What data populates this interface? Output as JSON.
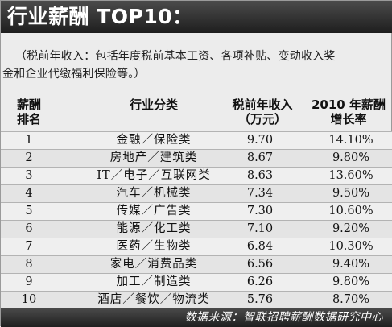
{
  "title": "行业薪酬 TOP10：",
  "note": {
    "line1": "（税前年收入：包括年度税前基本工资、各项补贴、变动收入奖",
    "line2": "金和企业代缴福利保险等。）"
  },
  "headers": {
    "rank": [
      "薪酬",
      "排名"
    ],
    "category": "行业分类",
    "pretax": [
      "税前年收入",
      "（万元）"
    ],
    "growth": [
      "2010 年薪酬",
      "增长率"
    ]
  },
  "rows": [
    {
      "rank": "1",
      "category": "金融／保险类",
      "pretax": "9.70",
      "growth": "14.10%"
    },
    {
      "rank": "2",
      "category": "房地产／建筑类",
      "pretax": "8.67",
      "growth": "9.80%"
    },
    {
      "rank": "3",
      "category": "IT／电子／互联网类",
      "pretax": "8.63",
      "growth": "13.60%"
    },
    {
      "rank": "4",
      "category": "汽车／机械类",
      "pretax": "7.34",
      "growth": "9.50%"
    },
    {
      "rank": "5",
      "category": "传媒／广告类",
      "pretax": "7.30",
      "growth": "10.60%"
    },
    {
      "rank": "6",
      "category": "能源／化工类",
      "pretax": "7.10",
      "growth": "9.20%"
    },
    {
      "rank": "7",
      "category": "医药／生物类",
      "pretax": "6.84",
      "growth": "10.30%"
    },
    {
      "rank": "8",
      "category": "家电／消费品类",
      "pretax": "6.56",
      "growth": "9.40%"
    },
    {
      "rank": "9",
      "category": "加工／制造类",
      "pretax": "6.26",
      "growth": "9.80%"
    },
    {
      "rank": "10",
      "category": "酒店／餐饮／物流类",
      "pretax": "5.76",
      "growth": "8.70%"
    }
  ],
  "source": "数据来源：智联招聘薪酬数据研究中心"
}
